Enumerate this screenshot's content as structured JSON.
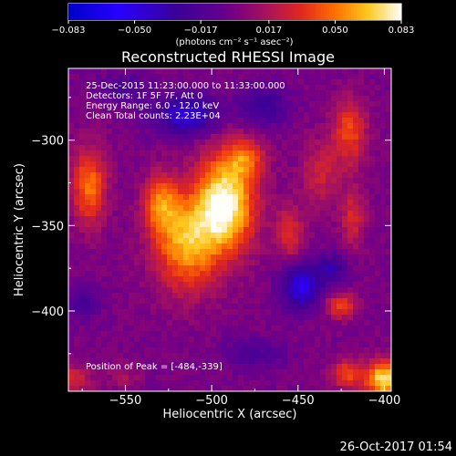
{
  "chart_data": {
    "type": "heatmap",
    "title": "Reconstructed RHESSI Image",
    "xlabel": "Heliocentric X (arcsec)",
    "ylabel": "Heliocentric Y (arcsec)",
    "xlim": [
      -583,
      -396
    ],
    "ylim": [
      -447,
      -258
    ],
    "xticks": [
      -550,
      -500,
      -450,
      -400
    ],
    "yticks": [
      -300,
      -350,
      -400
    ],
    "colorbar": {
      "range": [
        -0.083,
        0.083
      ],
      "ticks": [
        -0.083,
        -0.05,
        -0.017,
        0.017,
        0.05,
        0.083
      ],
      "tick_labels": [
        "−0.083",
        "−0.050",
        "−0.017",
        "0.017",
        "0.050",
        "0.083"
      ],
      "unit_label": "(photons cm⁻² s⁻¹ asec⁻²)"
    },
    "annotations": [
      "25-Dec-2015 11:23:00.000 to 11:33:00.000",
      "Detectors: 1F 5F 7F, Att 0",
      "Energy Range: 6.0 - 12.0 keV",
      "Clean     Total counts: 2.23E+04"
    ],
    "peak_label": "Position of Peak = [-484,-339]",
    "peak": [
      -484,
      -339
    ],
    "sources": [
      {
        "x": -492,
        "y": -337,
        "amp": 0.083,
        "sx": 12,
        "sy": 20
      },
      {
        "x": -515,
        "y": -360,
        "amp": 0.06,
        "sx": 13,
        "sy": 20
      },
      {
        "x": -530,
        "y": -337,
        "amp": 0.045,
        "sx": 7,
        "sy": 12
      },
      {
        "x": -571,
        "y": -327,
        "amp": 0.05,
        "sx": 7,
        "sy": 16
      },
      {
        "x": -480,
        "y": -310,
        "amp": 0.036,
        "sx": 8,
        "sy": 8
      },
      {
        "x": -455,
        "y": -355,
        "amp": 0.03,
        "sx": 6,
        "sy": 12
      },
      {
        "x": -437,
        "y": -320,
        "amp": 0.025,
        "sx": 8,
        "sy": 14
      },
      {
        "x": -420,
        "y": -295,
        "amp": 0.04,
        "sx": 7,
        "sy": 14
      },
      {
        "x": -418,
        "y": -345,
        "amp": 0.03,
        "sx": 5,
        "sy": 12
      },
      {
        "x": -425,
        "y": -397,
        "amp": 0.042,
        "sx": 6,
        "sy": 5
      },
      {
        "x": -400,
        "y": -440,
        "amp": 0.075,
        "sx": 8,
        "sy": 8
      },
      {
        "x": -422,
        "y": -437,
        "amp": 0.04,
        "sx": 6,
        "sy": 6
      },
      {
        "x": -583,
        "y": -440,
        "amp": 0.03,
        "sx": 10,
        "sy": 6
      },
      {
        "x": -551,
        "y": -438,
        "amp": 0.015,
        "sx": 6,
        "sy": 5
      },
      {
        "x": -515,
        "y": -285,
        "amp": -0.05,
        "sx": 12,
        "sy": 8
      },
      {
        "x": -470,
        "y": -280,
        "amp": -0.03,
        "sx": 10,
        "sy": 8
      },
      {
        "x": -448,
        "y": -385,
        "amp": -0.055,
        "sx": 8,
        "sy": 9
      },
      {
        "x": -430,
        "y": -375,
        "amp": -0.03,
        "sx": 6,
        "sy": 6
      },
      {
        "x": -575,
        "y": -395,
        "amp": -0.02,
        "sx": 7,
        "sy": 7
      },
      {
        "x": -550,
        "y": -270,
        "amp": -0.02,
        "sx": 10,
        "sy": 6
      },
      {
        "x": -475,
        "y": -425,
        "amp": -0.02,
        "sx": 12,
        "sy": 6
      }
    ]
  },
  "timestamp": "26-Oct-2017 01:54"
}
